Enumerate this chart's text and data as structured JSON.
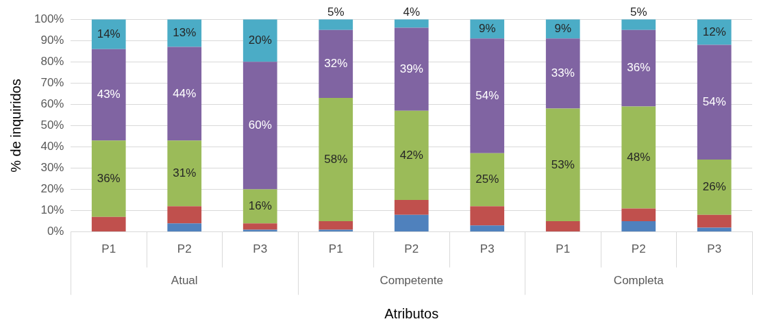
{
  "chart_data": {
    "type": "bar",
    "stacked": true,
    "xlabel": "Atributos",
    "ylabel": "% de inquiridos",
    "categories": [
      "P1",
      "P2",
      "P3",
      "P1",
      "P2",
      "P3",
      "P1",
      "P2",
      "P3"
    ],
    "annotations": [
      "Atual",
      "Competente",
      "Completa"
    ],
    "series": [
      {
        "color": "#4f81bd",
        "values": [
          0,
          4,
          1,
          1,
          8,
          3,
          0,
          5,
          2
        ]
      },
      {
        "color": "#c0504d",
        "values": [
          7,
          8,
          3,
          4,
          7,
          9,
          5,
          6,
          6
        ]
      },
      {
        "color": "#9bbb59",
        "values": [
          36,
          31,
          16,
          58,
          42,
          25,
          53,
          48,
          26
        ],
        "value_labels": [
          "36%",
          "31%",
          "16%",
          "58%",
          "42%",
          "25%",
          "53%",
          "48%",
          "26%"
        ]
      },
      {
        "color": "#8064a2",
        "values": [
          43,
          44,
          60,
          32,
          39,
          54,
          33,
          36,
          54
        ],
        "value_labels": [
          "43%",
          "44%",
          "60%",
          "32%",
          "39%",
          "54%",
          "33%",
          "36%",
          "54%"
        ]
      },
      {
        "color": "#4bacc6",
        "values": [
          14,
          13,
          20,
          5,
          4,
          9,
          9,
          5,
          12
        ],
        "value_labels": [
          "14%",
          "13%",
          "20%",
          "5%",
          "4%",
          "9%",
          "9%",
          "5%",
          "12%"
        ]
      }
    ],
    "ylim": [
      0,
      100
    ],
    "yticks": [
      {
        "value": 0,
        "label": "0%"
      },
      {
        "value": 10,
        "label": "10%"
      },
      {
        "value": 20,
        "label": "20%"
      },
      {
        "value": 30,
        "label": "30%"
      },
      {
        "value": 40,
        "label": "40%"
      },
      {
        "value": 50,
        "label": "50%"
      },
      {
        "value": 60,
        "label": "60%"
      },
      {
        "value": 70,
        "label": "70%"
      },
      {
        "value": 80,
        "label": "80%"
      },
      {
        "value": 90,
        "label": "90%"
      },
      {
        "value": 100,
        "label": "100%"
      }
    ],
    "grid": "y",
    "legend": false
  }
}
